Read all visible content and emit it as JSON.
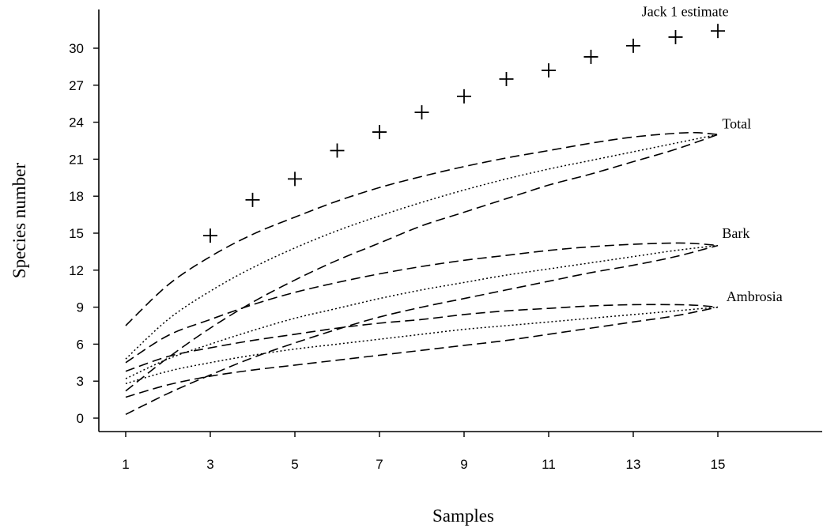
{
  "chart_data": {
    "type": "line",
    "title": "",
    "xlabel": "Samples",
    "ylabel": "Species number",
    "xlim": [
      1,
      15
    ],
    "ylim": [
      0,
      32
    ],
    "x_ticks": [
      1,
      3,
      5,
      7,
      9,
      11,
      13,
      15
    ],
    "y_ticks": [
      0,
      3,
      6,
      9,
      12,
      15,
      18,
      21,
      24,
      27,
      30
    ],
    "grid": false,
    "legend": "none",
    "annotations": [
      {
        "text": "Jack 1 estimate",
        "x": 13.2,
        "y": 32.6
      },
      {
        "text": "Total",
        "x": 15.1,
        "y": 23.5
      },
      {
        "text": "Bark",
        "x": 15.1,
        "y": 14.6
      },
      {
        "text": "Ambrosia",
        "x": 15.2,
        "y": 9.5
      }
    ],
    "series": [
      {
        "style": "plus-markers",
        "x": [
          3,
          4,
          5,
          6,
          7,
          8,
          9,
          10,
          11,
          12,
          13,
          14,
          15
        ],
        "y": [
          14.8,
          17.7,
          19.4,
          21.7,
          23.2,
          24.8,
          26.1,
          27.5,
          28.2,
          29.3,
          30.2,
          30.9,
          31.4
        ]
      },
      {
        "style": "dashed",
        "group": "Total",
        "x": [
          1,
          2,
          3,
          4,
          5,
          6,
          7,
          8,
          9,
          10,
          11,
          12,
          13,
          14,
          14.5,
          15
        ],
        "y": [
          7.5,
          10.8,
          13.1,
          14.9,
          16.3,
          17.6,
          18.7,
          19.6,
          20.4,
          21.1,
          21.7,
          22.3,
          22.8,
          23.1,
          23.15,
          23.0
        ]
      },
      {
        "style": "dotted",
        "group": "Total",
        "x": [
          1,
          2,
          3,
          4,
          5,
          6,
          7,
          8,
          9,
          10,
          11,
          12,
          13,
          14,
          15
        ],
        "y": [
          4.8,
          8.0,
          10.3,
          12.2,
          13.8,
          15.2,
          16.4,
          17.5,
          18.5,
          19.4,
          20.2,
          20.9,
          21.6,
          22.3,
          23.0
        ]
      },
      {
        "style": "dashed",
        "group": "Total",
        "x": [
          1,
          2,
          3,
          4,
          5,
          6,
          7,
          8,
          9,
          10,
          11,
          12,
          13,
          14,
          15
        ],
        "y": [
          2.2,
          4.9,
          7.3,
          9.4,
          11.2,
          12.8,
          14.2,
          15.6,
          16.7,
          17.8,
          18.9,
          19.8,
          20.8,
          21.8,
          23.0
        ]
      },
      {
        "style": "dashed",
        "group": "Bark",
        "x": [
          1,
          2,
          3,
          4,
          5,
          6,
          7,
          8,
          9,
          10,
          11,
          12,
          13,
          14,
          14.5,
          15
        ],
        "y": [
          4.5,
          6.7,
          8.0,
          9.2,
          10.2,
          11.0,
          11.7,
          12.3,
          12.8,
          13.2,
          13.6,
          13.9,
          14.1,
          14.2,
          14.15,
          14.0
        ]
      },
      {
        "style": "dotted",
        "group": "Bark",
        "x": [
          1,
          2,
          3,
          4,
          5,
          6,
          7,
          8,
          9,
          10,
          11,
          12,
          13,
          14,
          15
        ],
        "y": [
          3.2,
          4.8,
          6.0,
          7.1,
          8.1,
          8.9,
          9.7,
          10.4,
          11.0,
          11.6,
          12.1,
          12.6,
          13.1,
          13.6,
          14.0
        ]
      },
      {
        "style": "dashed",
        "group": "Bark",
        "x": [
          1,
          2,
          3,
          4,
          5,
          6,
          7,
          8,
          9,
          10,
          11,
          12,
          13,
          14,
          15
        ],
        "y": [
          0.3,
          2.0,
          3.5,
          4.9,
          6.1,
          7.2,
          8.2,
          9.0,
          9.7,
          10.4,
          11.1,
          11.8,
          12.4,
          13.1,
          14.0
        ]
      },
      {
        "style": "dashed",
        "group": "Ambrosia",
        "x": [
          1,
          2,
          3,
          4,
          5,
          6,
          7,
          8,
          9,
          10,
          11,
          12,
          13,
          14,
          14.5,
          15
        ],
        "y": [
          3.8,
          5.0,
          5.7,
          6.3,
          6.8,
          7.3,
          7.7,
          8.0,
          8.4,
          8.7,
          8.9,
          9.1,
          9.2,
          9.2,
          9.15,
          9.0
        ]
      },
      {
        "style": "dotted",
        "group": "Ambrosia",
        "x": [
          1,
          2,
          3,
          4,
          5,
          6,
          7,
          8,
          9,
          10,
          11,
          12,
          13,
          14,
          15
        ],
        "y": [
          2.8,
          3.8,
          4.5,
          5.1,
          5.6,
          6.0,
          6.4,
          6.8,
          7.2,
          7.5,
          7.8,
          8.1,
          8.4,
          8.7,
          9.0
        ]
      },
      {
        "style": "dashed",
        "group": "Ambrosia",
        "x": [
          1,
          2,
          3,
          4,
          5,
          6,
          7,
          8,
          9,
          10,
          11,
          12,
          13,
          14,
          15
        ],
        "y": [
          1.7,
          2.7,
          3.4,
          3.9,
          4.3,
          4.7,
          5.1,
          5.5,
          5.9,
          6.3,
          6.8,
          7.3,
          7.8,
          8.3,
          9.0
        ]
      }
    ]
  }
}
